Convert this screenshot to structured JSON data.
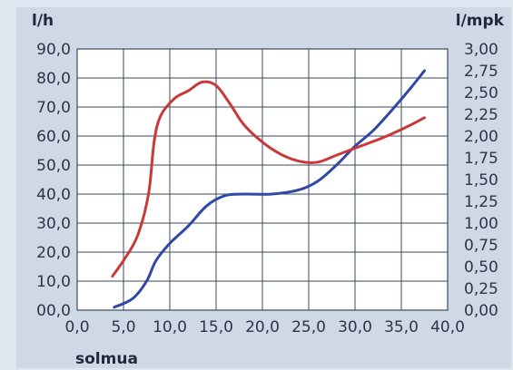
{
  "chart_data": {
    "type": "line",
    "ylabel_left": "l/h",
    "ylabel_right": "l/mpk",
    "xlabel": "solmua",
    "xlim": [
      0,
      40
    ],
    "ylim_left": [
      0,
      90
    ],
    "ylim_right": [
      0,
      3
    ],
    "x_ticks": [
      "0,0",
      "5,0",
      "10,0",
      "15,0",
      "20,0",
      "25,0",
      "30,0",
      "35,0",
      "40,0"
    ],
    "y_left_ticks": [
      "00,0",
      "10,0",
      "20,0",
      "30,0",
      "40,0",
      "50,0",
      "60,0",
      "70,0",
      "80,0",
      "90,0"
    ],
    "y_right_ticks": [
      "0,00",
      "0,25",
      "0,50",
      "0,75",
      "1,00",
      "1,25",
      "1,50",
      "1,75",
      "2,00",
      "2,25",
      "2,50",
      "2,75",
      "3,00"
    ],
    "grid": true,
    "series": [
      {
        "axis": "left",
        "color": "#2f47a6",
        "points": [
          [
            4.0,
            1.0
          ],
          [
            6.0,
            4.0
          ],
          [
            7.5,
            10.0
          ],
          [
            8.5,
            17.0
          ],
          [
            10.0,
            23.0
          ],
          [
            12.0,
            29.0
          ],
          [
            14.0,
            36.0
          ],
          [
            16.0,
            39.5
          ],
          [
            18.0,
            40.0
          ],
          [
            21.0,
            40.0
          ],
          [
            24.0,
            41.5
          ],
          [
            26.0,
            44.5
          ],
          [
            28.0,
            50.0
          ],
          [
            30.0,
            56.5
          ],
          [
            32.0,
            62.0
          ],
          [
            34.0,
            69.0
          ],
          [
            36.0,
            76.5
          ],
          [
            37.5,
            82.5
          ]
        ]
      },
      {
        "axis": "right",
        "color": "#c8393a",
        "points": [
          [
            3.8,
            0.39
          ],
          [
            5.0,
            0.57
          ],
          [
            6.5,
            0.85
          ],
          [
            7.7,
            1.33
          ],
          [
            8.3,
            1.93
          ],
          [
            9.0,
            2.23
          ],
          [
            10.5,
            2.43
          ],
          [
            12.0,
            2.52
          ],
          [
            13.5,
            2.62
          ],
          [
            15.0,
            2.58
          ],
          [
            16.5,
            2.37
          ],
          [
            18.0,
            2.13
          ],
          [
            20.0,
            1.93
          ],
          [
            22.0,
            1.79
          ],
          [
            24.0,
            1.71
          ],
          [
            26.0,
            1.7
          ],
          [
            28.0,
            1.78
          ],
          [
            30.5,
            1.88
          ],
          [
            33.0,
            1.98
          ],
          [
            35.5,
            2.1
          ],
          [
            37.5,
            2.21
          ]
        ]
      }
    ]
  }
}
